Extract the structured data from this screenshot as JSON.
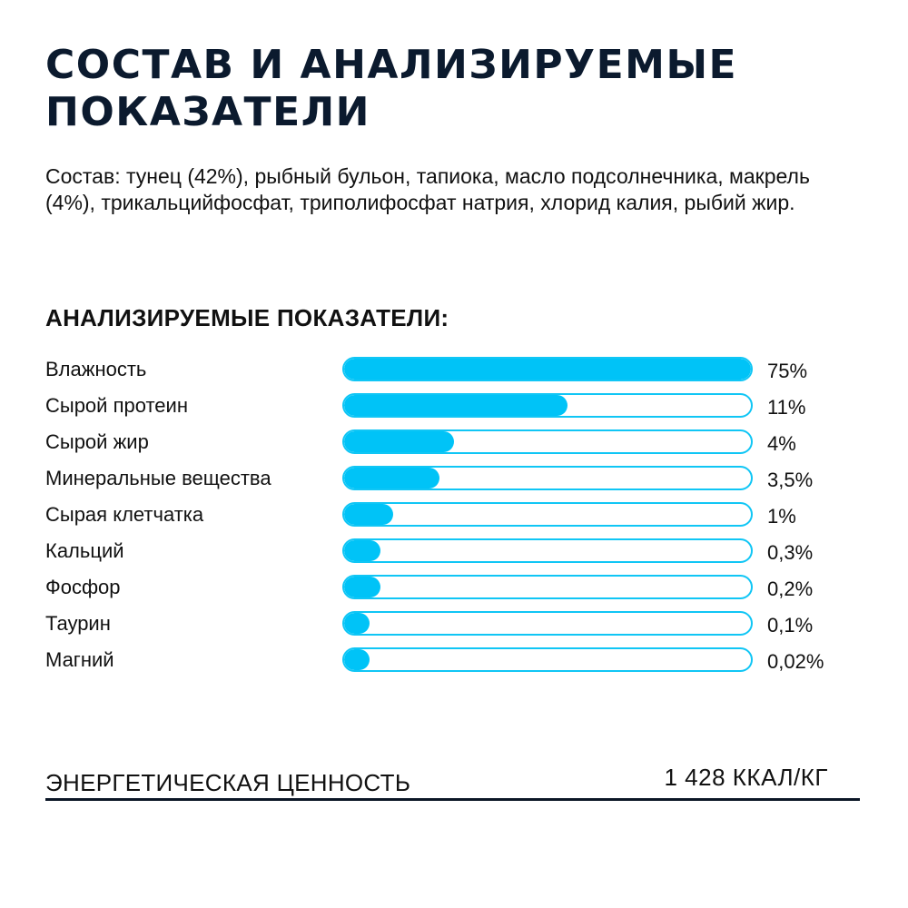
{
  "title": "СОСТАВ И АНАЛИЗИРУЕМЫЕ ПОКАЗАТЕЛИ",
  "composition": "Состав: тунец (42%), рыбный бульон, тапиока, масло подсолнечника, макрель (4%), трикальцийфосфат, триполифосфат натрия, хлорид калия, рыбий жир.",
  "indicators_heading": "АНАЛИЗИРУЕМЫЕ ПОКАЗАТЕЛИ:",
  "colors": {
    "bar_fill": "#00c3f7",
    "bar_border": "#10c6f5",
    "title": "#0b1a2e"
  },
  "indicators": [
    {
      "label": "Влажность",
      "value": "75%",
      "fill_fraction": 1.0
    },
    {
      "label": "Сырой протеин",
      "value": "11%",
      "fill_fraction": 0.55
    },
    {
      "label": "Сырой жир",
      "value": "4%",
      "fill_fraction": 0.27
    },
    {
      "label": "Минеральные вещества",
      "value": "3,5%",
      "fill_fraction": 0.235
    },
    {
      "label": "Сырая клетчатка",
      "value": "1%",
      "fill_fraction": 0.12
    },
    {
      "label": "Кальций",
      "value": "0,3%",
      "fill_fraction": 0.09
    },
    {
      "label": "Фосфор",
      "value": "0,2%",
      "fill_fraction": 0.09
    },
    {
      "label": "Таурин",
      "value": "0,1%",
      "fill_fraction": 0.06
    },
    {
      "label": "Магний",
      "value": "0,02%",
      "fill_fraction": 0.06
    }
  ],
  "energy": {
    "label": "ЭНЕРГЕТИЧЕСКАЯ ЦЕННОСТЬ",
    "value": "1 428 ККАЛ/КГ"
  }
}
